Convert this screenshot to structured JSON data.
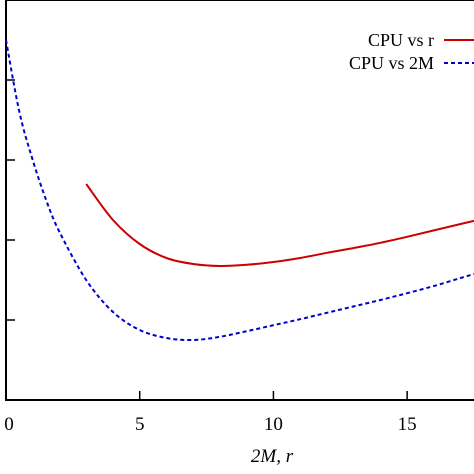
{
  "chart_data": {
    "type": "line",
    "xlabel": "2M, r",
    "xlim": [
      0,
      17.5
    ],
    "ylim": [
      0,
      1
    ],
    "xticks": [
      0,
      5,
      10,
      15
    ],
    "xtick_labels": [
      "0",
      "5",
      "10",
      "15"
    ],
    "yticks": [
      0.2,
      0.4,
      0.6,
      0.8
    ],
    "ytick_labels": [
      "",
      "",
      "",
      ""
    ],
    "grid": false,
    "legend_position": "top-right",
    "series": [
      {
        "name": "CPU vs r",
        "color": "#cc0000",
        "style": "solid",
        "x": [
          3,
          4,
          5,
          6,
          7,
          8,
          9,
          10,
          11,
          12,
          13,
          14,
          15,
          16,
          17,
          17.5
        ],
        "y": [
          0.54,
          0.45,
          0.39,
          0.355,
          0.34,
          0.335,
          0.338,
          0.345,
          0.355,
          0.368,
          0.38,
          0.393,
          0.408,
          0.424,
          0.44,
          0.448
        ]
      },
      {
        "name": "CPU vs 2M",
        "color": "#0000cc",
        "style": "dashed",
        "x": [
          0,
          0.5,
          1,
          1.5,
          2,
          3,
          4,
          5,
          6,
          7,
          8,
          9,
          10,
          11,
          12,
          13,
          14,
          15,
          16,
          17,
          17.5
        ],
        "y": [
          0.9,
          0.72,
          0.6,
          0.5,
          0.42,
          0.3,
          0.22,
          0.175,
          0.155,
          0.15,
          0.158,
          0.172,
          0.187,
          0.202,
          0.218,
          0.234,
          0.25,
          0.267,
          0.285,
          0.305,
          0.315
        ]
      }
    ]
  }
}
